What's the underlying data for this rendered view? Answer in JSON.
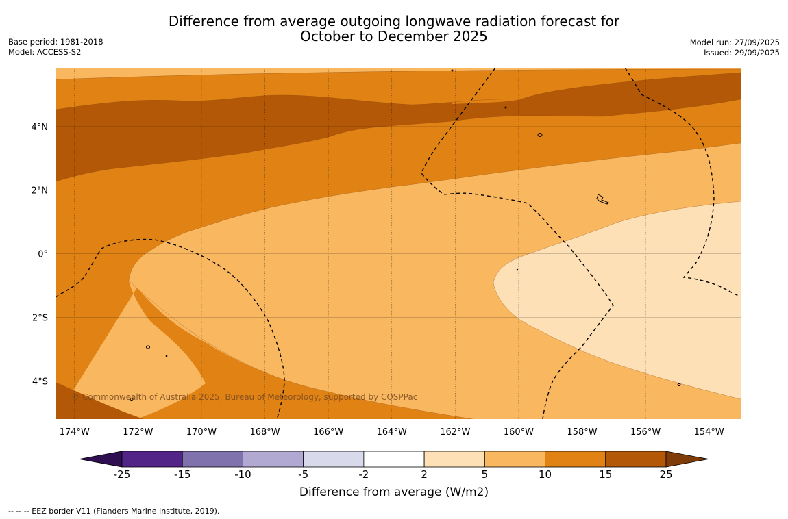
{
  "title": {
    "line1": "Difference from average outgoing longwave radiation forecast for",
    "line2": "October to December 2025"
  },
  "meta_left": {
    "base_period": "Base period: 1981-2018",
    "model": "Model: ACCESS-S2"
  },
  "meta_right": {
    "model_run": "Model run: 27/09/2025",
    "issued": "Issued: 29/09/2025"
  },
  "copyright": "© Commonwealth of Australia 2025, Bureau of Meteorology, supported by COSPPac",
  "footer": "--  --  -- EEZ border V11 (Flanders Marine Institute, 2019).",
  "map": {
    "lon_range": [
      -174.6,
      -153.0
    ],
    "lat_range": [
      -5.2,
      5.85
    ],
    "lon_ticks": [
      -174,
      -172,
      -170,
      -168,
      -166,
      -164,
      -162,
      -160,
      -158,
      -156,
      -154
    ],
    "lon_tick_labels": [
      "174°W",
      "172°W",
      "170°W",
      "168°W",
      "166°W",
      "164°W",
      "162°W",
      "160°W",
      "158°W",
      "156°W",
      "154°W"
    ],
    "lat_ticks": [
      4,
      2,
      0,
      -2,
      -4
    ],
    "lat_tick_labels": [
      "4°N",
      "2°N",
      "0°",
      "2°S",
      "4°S"
    ]
  },
  "colorbar": {
    "title": "Difference from average (W/m2)",
    "tick_labels": [
      "-25",
      "-15",
      "-10",
      "-5",
      "-2",
      "2",
      "5",
      "10",
      "15",
      "25"
    ],
    "colors": [
      "#2f0e52",
      "#522488",
      "#8072ad",
      "#b2a9d3",
      "#d9d9ec",
      "#ffffff",
      "#fde0b6",
      "#f9b760",
      "#e08214",
      "#b35806",
      "#7f3b08"
    ],
    "extend": "both"
  },
  "legend_colors": {
    "c5_10": "#f9b760",
    "c10_15": "#e08214",
    "c15_25": "#b35806",
    "c2_5": "#fde0b6"
  }
}
